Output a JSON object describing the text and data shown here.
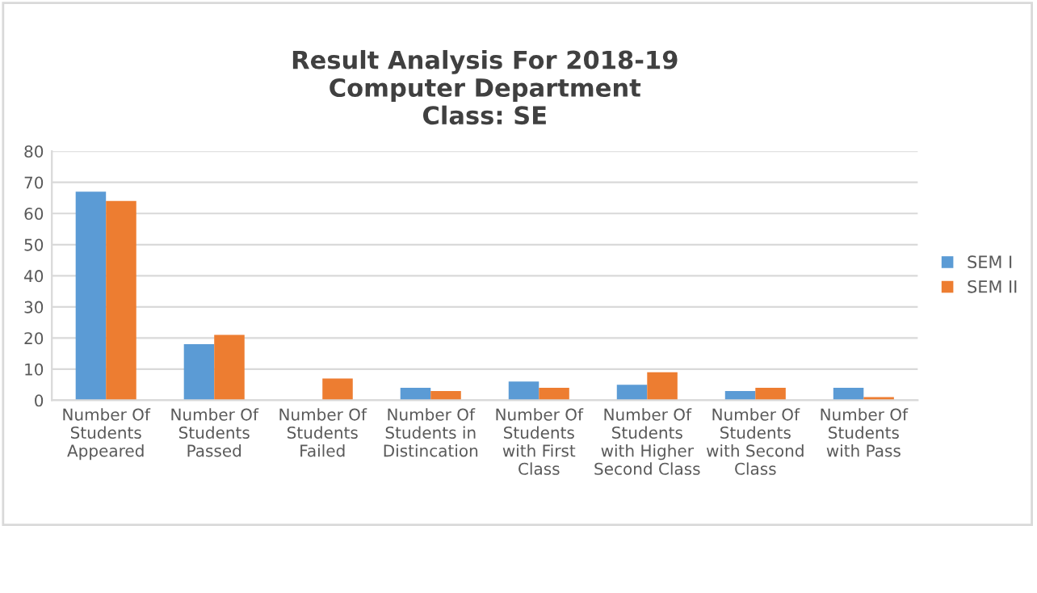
{
  "chart_data": {
    "type": "bar",
    "title": "Result Analysis For 2018-19\nComputer Department\nClass: SE",
    "categories": [
      "Number Of\nStudents\nAppeared",
      "Number Of\nStudents\nPassed",
      "Number Of\nStudents\nFailed",
      "Number Of\nStudents in\nDistincation",
      "Number Of\nStudents\nwith First\nClass",
      "Number Of\nStudents\nwith Higher\nSecond Class",
      "Number Of\nStudents\nwith Second\nClass",
      "Number Of\nStudents\nwith Pass"
    ],
    "series": [
      {
        "name": "SEM I",
        "color": "#5b9bd5",
        "values": [
          67,
          18,
          0,
          4,
          6,
          5,
          3,
          4
        ]
      },
      {
        "name": "SEM II",
        "color": "#ed7d31",
        "values": [
          64,
          21,
          7,
          3,
          4,
          9,
          4,
          1
        ]
      }
    ],
    "ylim": [
      0,
      80
    ],
    "yticks": [
      0,
      10,
      20,
      30,
      40,
      50,
      60,
      70,
      80
    ],
    "grid": "y",
    "legend": "right"
  }
}
